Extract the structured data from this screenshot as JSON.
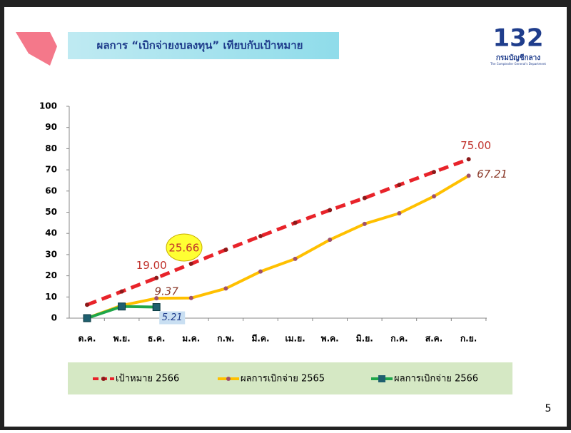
{
  "slide_title": "ผลการ “เบิกจ่ายงบลงทุน” เทียบกับเป้าหมาย",
  "logo": {
    "mark": "132",
    "name": "กรมบัญชีกลาง",
    "subtitle": "The Comptroller General's Department"
  },
  "page_number": "5",
  "chart_data": {
    "type": "line",
    "categories": [
      "ต.ค.",
      "พ.ย.",
      "ธ.ค.",
      "ม.ค.",
      "ก.พ.",
      "มี.ค.",
      "เม.ย.",
      "พ.ค.",
      "มิ.ย.",
      "ก.ค.",
      "ส.ค.",
      "ก.ย."
    ],
    "ylim": [
      0,
      100
    ],
    "yticks": [
      0,
      10,
      20,
      30,
      40,
      50,
      60,
      70,
      80,
      90,
      100
    ],
    "legend": "bottom",
    "series": [
      {
        "name": "เป้าหมาย 2566",
        "color": "#e8232a",
        "dashed": true,
        "values": [
          6.3,
          12.6,
          19,
          25.66,
          32.3,
          38.7,
          45,
          51,
          56.7,
          62.9,
          69,
          75
        ],
        "value_labels": [
          null,
          null,
          "19.00",
          "25.66",
          null,
          null,
          null,
          null,
          null,
          null,
          null,
          "75.00"
        ]
      },
      {
        "name": "ผลการเบิกจ่าย 2565",
        "color": "#ffc000",
        "values": [
          0,
          6,
          9.37,
          9.5,
          14,
          22,
          28,
          37,
          44.5,
          49.5,
          57.5,
          67.21
        ],
        "value_labels": [
          null,
          null,
          "9.37",
          null,
          null,
          null,
          null,
          null,
          null,
          null,
          null,
          "67.21"
        ]
      },
      {
        "name": "ผลการเบิกจ่าย 2566",
        "color": "#1fa64a",
        "values": [
          0,
          5.5,
          5.21,
          null,
          null,
          null,
          null,
          null,
          null,
          null,
          null,
          null
        ],
        "value_labels": [
          null,
          null,
          "5.21",
          null,
          null,
          null,
          null,
          null,
          null,
          null,
          null,
          null
        ]
      }
    ]
  }
}
